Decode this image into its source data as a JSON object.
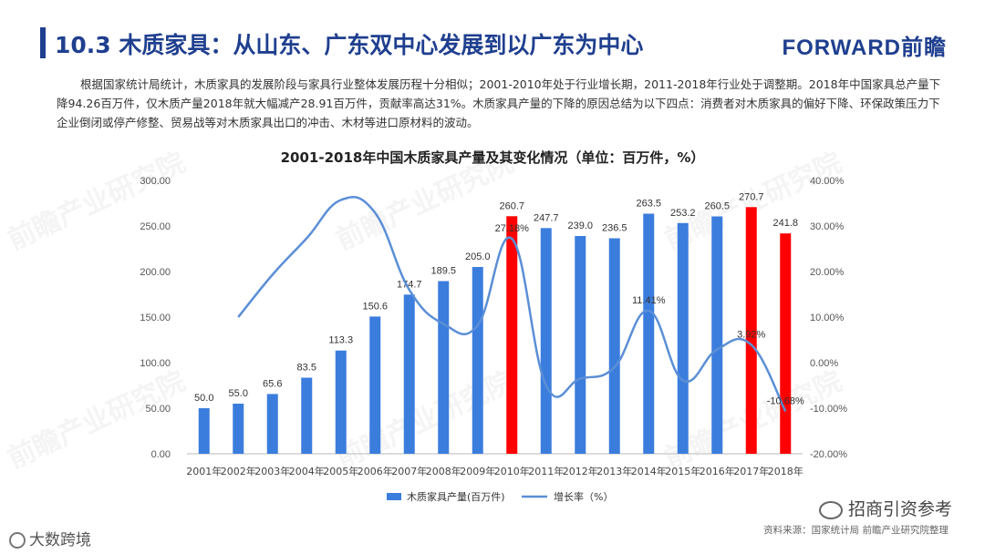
{
  "header": {
    "title": "10.3  木质家具：从山东、广东双中心发展到以广东为中心",
    "logo": "FORWARD前瞻"
  },
  "intro": "根据国家统计局统计，木质家具的发展阶段与家具行业整体发展历程十分相似；2001-2010年处于行业增长期，2011-2018年行业处于调整期。2018年中国家具总产量下降94.26百万件，仅木质产量2018年就大幅减产28.91百万件，贡献率高达31%。木质家具产量的下降的原因总结为以下四点：消费者对木质家具的偏好下降、环保政策压力下企业倒闭或停产修整、贸易战等对木质家具出口的冲击、木材等进口原材料的波动。",
  "chart_data": {
    "type": "bar",
    "title": "2001-2018年中国木质家具产量及其变化情况（单位：百万件，%）",
    "categories": [
      "2001年",
      "2002年",
      "2003年",
      "2004年",
      "2005年",
      "2006年",
      "2007年",
      "2008年",
      "2009年",
      "2010年",
      "2011年",
      "2012年",
      "2013年",
      "2014年",
      "2015年",
      "2016年",
      "2017年",
      "2018年"
    ],
    "series": [
      {
        "name": "木质家具产量(百万件)",
        "type": "bar",
        "axis": "left",
        "values": [
          50.0,
          55.0,
          65.6,
          83.5,
          113.3,
          150.6,
          174.7,
          189.5,
          205.0,
          260.7,
          247.7,
          239.0,
          236.5,
          263.5,
          253.2,
          260.5,
          270.7,
          241.8
        ],
        "labels": [
          "50.0",
          "55.0",
          "65.6",
          "83.5",
          "113.3",
          "150.6",
          "174.7",
          "189.5",
          "205.0",
          "260.7",
          "247.7",
          "239.0",
          "236.5",
          "263.5",
          "253.2",
          "260.5",
          "270.7",
          "241.8"
        ],
        "highlight_indices": [
          9,
          16,
          17
        ]
      },
      {
        "name": "增长率（%）",
        "type": "line",
        "axis": "right",
        "values": [
          null,
          10.0,
          19.3,
          27.3,
          35.7,
          32.9,
          16.0,
          8.5,
          8.2,
          27.2,
          -5.0,
          -3.5,
          -1.0,
          11.41,
          -3.9,
          2.9,
          3.92,
          -10.68
        ]
      }
    ],
    "line_labels": [
      {
        "index": 9,
        "text": "27.18%"
      },
      {
        "index": 13,
        "text": "11.41%"
      },
      {
        "index": 16,
        "text": "3.92%"
      },
      {
        "index": 17,
        "text": "-10.68%"
      }
    ],
    "left_axis": {
      "ylim": [
        0,
        300
      ],
      "ticks": [
        "0.00",
        "50.00",
        "100.00",
        "150.00",
        "200.00",
        "250.00",
        "300.00"
      ]
    },
    "right_axis": {
      "ylim": [
        -20,
        40
      ],
      "ticks": [
        "-20.00%",
        "-10.00%",
        "0.00%",
        "10.00%",
        "20.00%",
        "30.00%",
        "40.00%"
      ]
    },
    "colors": {
      "bar": "#3b7ddd",
      "highlight": "#ff0000",
      "line": "#5b8fd6"
    },
    "legend_position": "bottom-center"
  },
  "footer": {
    "source": "资料来源：国家统计局  前瞻产业研究院整理",
    "wechat": "招商引资参考",
    "bottom_left": "大数跨境"
  },
  "watermark": "前瞻产业研究院"
}
